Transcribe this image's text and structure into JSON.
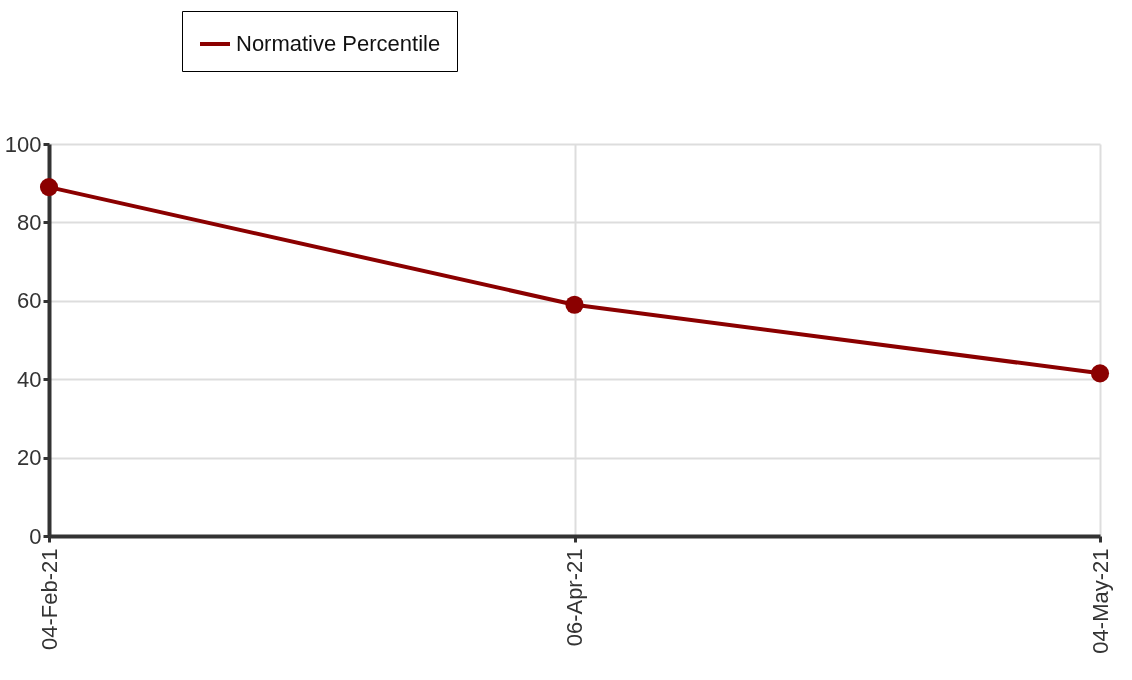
{
  "chart_data": {
    "type": "line",
    "categories": [
      "04-Feb-21",
      "06-Apr-21",
      "04-May-21"
    ],
    "series": [
      {
        "name": "Normative Percentile",
        "color": "#8b0000",
        "values": [
          89,
          59,
          41.5
        ]
      }
    ],
    "ylim": [
      0,
      100
    ],
    "yticks": [
      0,
      20,
      40,
      60,
      80,
      100
    ],
    "grid": true,
    "legend": "top left",
    "marker": "circle",
    "line_style": "solid"
  }
}
